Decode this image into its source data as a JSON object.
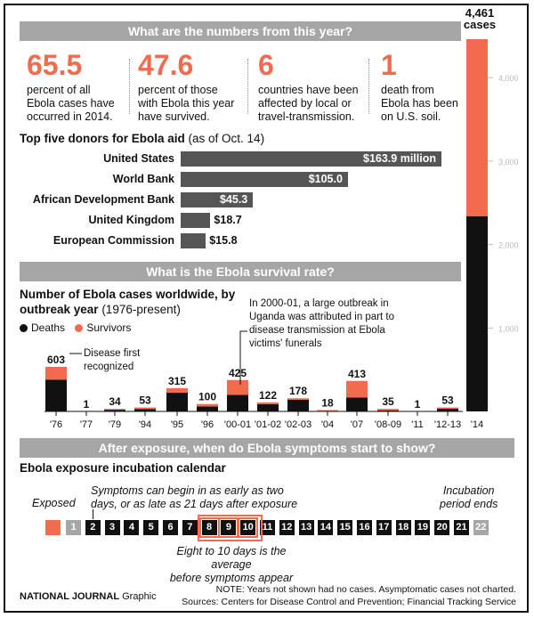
{
  "banners": {
    "numbers": "What are the numbers from this year?",
    "survival": "What is the Ebola survival rate?",
    "exposure": "After exposure, when do Ebola symptoms start to show?"
  },
  "stats": [
    {
      "value": "65.5",
      "text": [
        "percent of all",
        "Ebola cases have",
        "occurred in 2014."
      ]
    },
    {
      "value": "47.6",
      "text": [
        "percent of those",
        "with Ebola this year",
        "have survived."
      ]
    },
    {
      "value": "6",
      "text": [
        "countries have been",
        "affected by local or",
        "travel-transmission."
      ]
    },
    {
      "value": "1",
      "text": [
        "death from",
        "Ebola has been",
        "on U.S. soil."
      ]
    }
  ],
  "donors": {
    "title": "Top five donors for Ebola aid",
    "subtitle": "(as of Oct. 14)",
    "items": [
      {
        "name": "United States",
        "value": 163.9,
        "label": "$163.9 million"
      },
      {
        "name": "World Bank",
        "value": 105.0,
        "label": "$105.0"
      },
      {
        "name": "African Development Bank",
        "value": 45.3,
        "label": "$45.3"
      },
      {
        "name": "United Kingdom",
        "value": 18.7,
        "label": "$18.7"
      },
      {
        "name": "European Commission",
        "value": 15.8,
        "label": "$15.8"
      }
    ]
  },
  "chart_data": {
    "type": "bar",
    "title": "Number of Ebola cases worldwide, by outbreak year",
    "subtitle": "(1976-present)",
    "categories": [
      "'76",
      "'77",
      "'79",
      "'94",
      "'95",
      "'96",
      "'00-01",
      "'01-02",
      "'02-03",
      "'04",
      "'07",
      "'08-09",
      "'11",
      "'12-13",
      "'14"
    ],
    "totals": [
      603,
      1,
      34,
      53,
      315,
      100,
      425,
      122,
      178,
      18,
      413,
      35,
      1,
      53,
      4461
    ],
    "series": [
      {
        "name": "Deaths",
        "color": "#111111",
        "values": [
          431,
          1,
          22,
          31,
          254,
          66,
          224,
          97,
          157,
          7,
          187,
          15,
          1,
          35,
          2340
        ]
      },
      {
        "name": "Survivors",
        "color": "#f26b4f",
        "values": [
          172,
          0,
          12,
          22,
          61,
          34,
          201,
          25,
          21,
          11,
          226,
          20,
          0,
          18,
          2121
        ]
      }
    ],
    "ylim": [
      0,
      4461
    ],
    "yticks": [
      "1,000",
      "2,000",
      "3,000",
      "4,000"
    ],
    "big_label": "4,461",
    "big_label_unit": "cases",
    "legend": [
      "Deaths",
      "Survivors"
    ],
    "annotations": {
      "first": [
        "Disease first",
        "recognized"
      ],
      "uganda": [
        "In 2000-01, a large outbreak in",
        "Uganda was attributed in part to",
        "disease transmission at Ebola",
        "victims' funerals"
      ]
    }
  },
  "incubation": {
    "title": "Ebola exposure incubation calendar",
    "exposed_label": "Exposed",
    "days": [
      "1",
      "2",
      "3",
      "4",
      "5",
      "6",
      "7",
      "8",
      "9",
      "10",
      "11",
      "12",
      "13",
      "14",
      "15",
      "16",
      "17",
      "18",
      "19",
      "20",
      "21",
      "22"
    ],
    "note_top": [
      "Symptoms can begin in as early as two",
      "days, or as late as 21 days after exposure"
    ],
    "note_bottom": [
      "Eight to 10 days is the average",
      "before symptoms appear"
    ],
    "note_end": [
      "Incubation",
      "period ends"
    ]
  },
  "footer": {
    "brand": "NATIONAL JOURNAL",
    "brand_suffix": "Graphic",
    "note": "NOTE: Years not shown had no cases. Asymptomatic cases not charted.",
    "sources": "Sources: Centers for Disease Control and Prevention; Financial Tracking Service"
  },
  "colors": {
    "accent": "#f26b4f",
    "dark": "#111111",
    "gray": "#a6a6a6",
    "bar": "#555555"
  }
}
